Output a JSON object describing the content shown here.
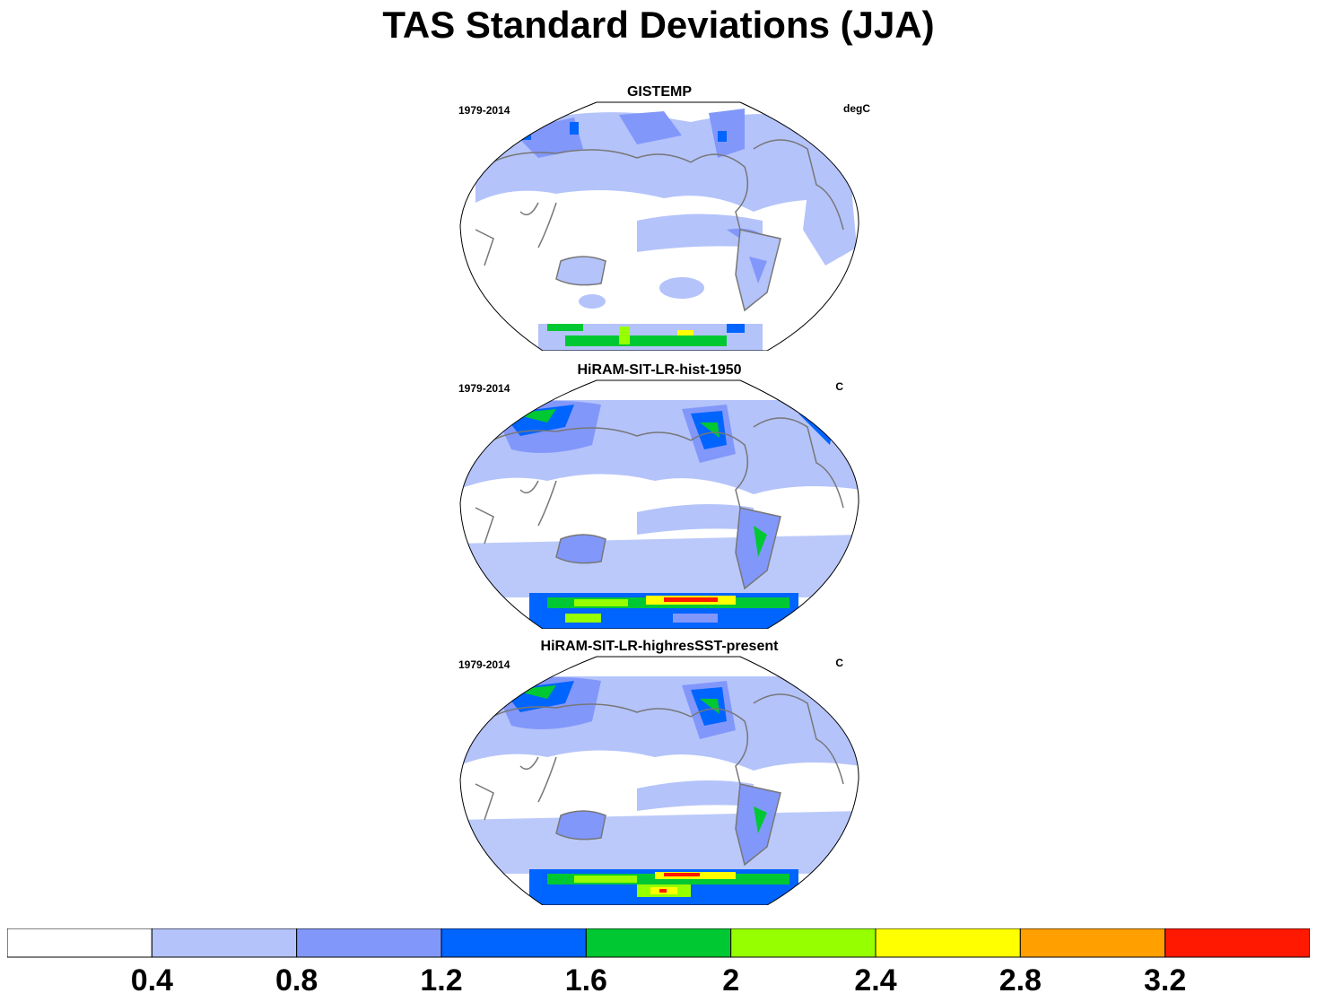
{
  "title": "TAS Standard Deviations (JJA)",
  "panels": [
    {
      "title": "GISTEMP",
      "period": "1979-2014",
      "units": "degC"
    },
    {
      "title": "HiRAM-SIT-LR-hist-1950",
      "period": "1979-2014",
      "units": "C"
    },
    {
      "title": "HiRAM-SIT-LR-highresSST-present",
      "period": "1979-2014",
      "units": "C"
    }
  ],
  "colorbar": {
    "colors": [
      "#ffffff",
      "#b4c3fa",
      "#8297fa",
      "#0064ff",
      "#00c832",
      "#96ff00",
      "#ffff00",
      "#ffa000",
      "#ff1900"
    ],
    "tick_labels": [
      "0.4",
      "0.8",
      "1.2",
      "1.6",
      "2",
      "2.4",
      "2.8",
      "3.2"
    ]
  },
  "colors": {
    "land_outline": "#777777",
    "map_border": "#000000"
  }
}
